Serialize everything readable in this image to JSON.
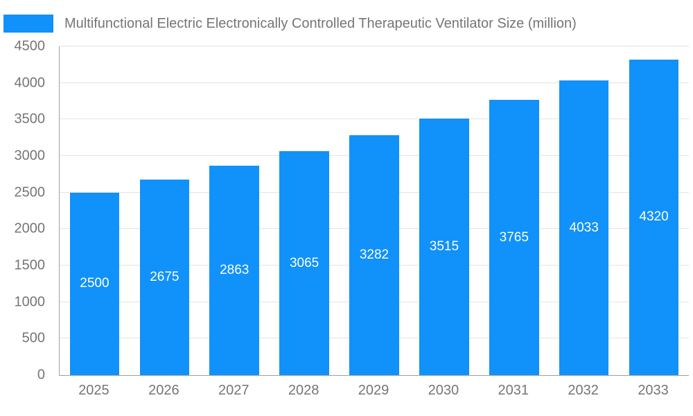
{
  "chart_data": {
    "type": "bar",
    "title": "Multifunctional Electric Electronically Controlled Therapeutic Ventilator Size (million)",
    "categories": [
      "2025",
      "2026",
      "2027",
      "2028",
      "2029",
      "2030",
      "2031",
      "2032",
      "2033"
    ],
    "values": [
      2500,
      2675,
      2863,
      3065,
      3282,
      3515,
      3765,
      4033,
      4320
    ],
    "xlabel": "",
    "ylabel": "",
    "ylim": [
      0,
      4500
    ],
    "ytick_step": 500,
    "grid": true,
    "legend_position": "top-left",
    "legend_entries": [
      "Multifunctional Electric Electronically Controlled Therapeutic Ventilator Size (million)"
    ],
    "colors": {
      "bar": "#1191fa",
      "bar_label": "#ffffff",
      "axis_text": "#757575",
      "gridline": "#e3e3e3",
      "axis_line": "#9e9e9e"
    }
  }
}
